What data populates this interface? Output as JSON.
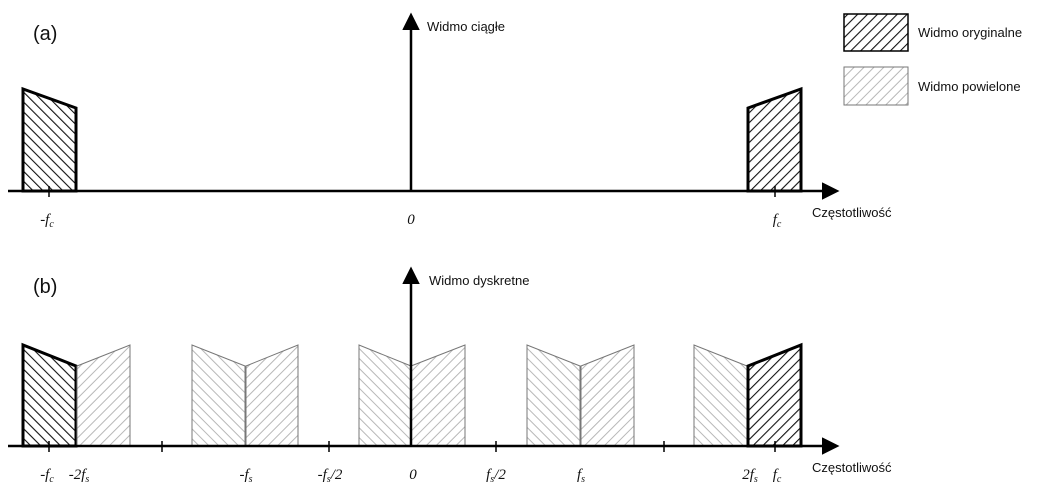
{
  "panel_a": {
    "label": "(a)",
    "axis_title": "Widmo ciągłe",
    "x_axis_title": "Częstotliwość",
    "ticks": [
      {
        "base": "-f",
        "sub": "c",
        "suffix": ""
      },
      {
        "base": "0",
        "sub": "",
        "suffix": ""
      },
      {
        "base": "f",
        "sub": "c",
        "suffix": ""
      }
    ]
  },
  "panel_b": {
    "label": "(b)",
    "axis_title": "Widmo dyskretne",
    "x_axis_title": "Częstotliwość",
    "ticks": [
      {
        "base": "-f",
        "sub": "c",
        "suffix": ""
      },
      {
        "base": "-2f",
        "sub": "s",
        "suffix": ""
      },
      {
        "base": "-f",
        "sub": "s",
        "suffix": ""
      },
      {
        "base": "-f",
        "sub": "s",
        "suffix": "/2"
      },
      {
        "base": "0",
        "sub": "",
        "suffix": ""
      },
      {
        "base": "f",
        "sub": "s",
        "suffix": "/2"
      },
      {
        "base": "f",
        "sub": "s",
        "suffix": ""
      },
      {
        "base": "2f",
        "sub": "s",
        "suffix": ""
      },
      {
        "base": "f",
        "sub": "c",
        "suffix": ""
      }
    ]
  },
  "legend": {
    "original": "Widmo oryginalne",
    "replicated": "Widmo powielone"
  },
  "colors": {
    "original_hatch": "#111111",
    "replicated_hatch": "#b8b8b8",
    "axis": "#000000"
  }
}
